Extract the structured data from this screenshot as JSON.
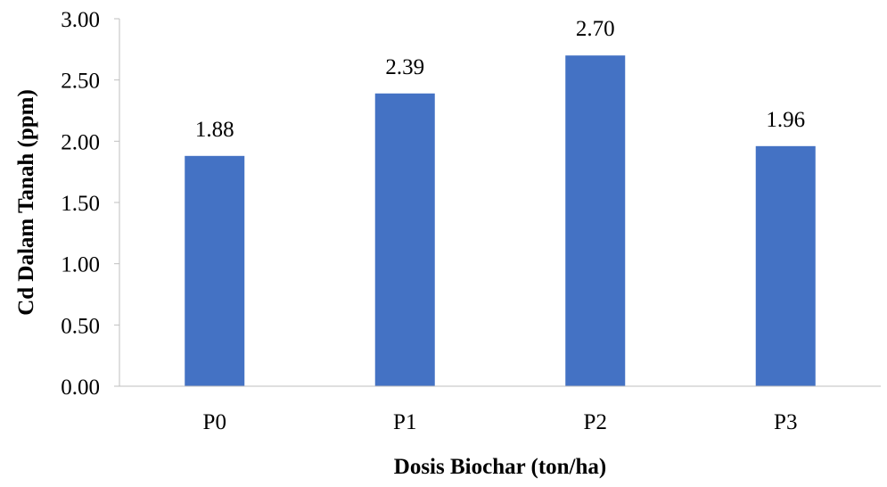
{
  "chart_data": {
    "type": "bar",
    "title": "",
    "xlabel": "Dosis Biochar (ton/ha)",
    "ylabel": "Cd Dalam Tanah (ppm)",
    "categories": [
      "P0",
      "P1",
      "P2",
      "P3"
    ],
    "values": [
      1.88,
      2.39,
      2.7,
      1.96
    ],
    "data_labels": [
      "1.88",
      "2.39",
      "2.70",
      "1.96"
    ],
    "ylim": [
      0,
      3
    ],
    "yticks": [
      0,
      0.5,
      1,
      1.5,
      2,
      2.5,
      3
    ],
    "ytick_labels": [
      "0.00",
      "0.50",
      "1.00",
      "1.50",
      "2.00",
      "2.50",
      "3.00"
    ],
    "grid": false,
    "legend": "none",
    "bar_color": "#4472C4",
    "axis_color": "#BFBFBF"
  }
}
